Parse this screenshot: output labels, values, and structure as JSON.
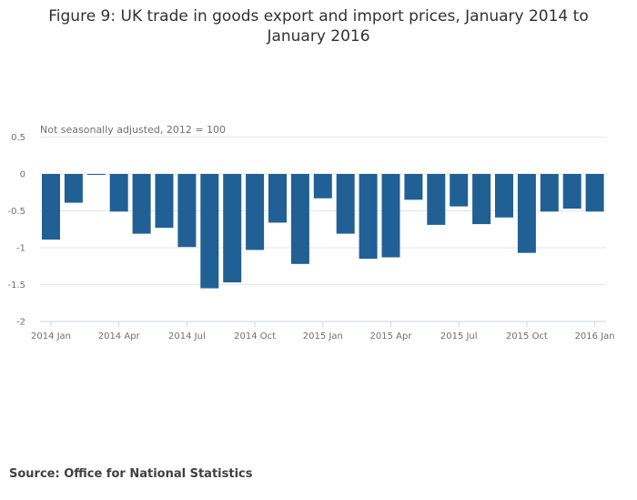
{
  "chart_data": {
    "type": "bar",
    "title": "Figure 9: UK trade in goods export and import prices, January 2014 to January 2016",
    "subtitle": "Not seasonally adjusted, 2012 = 100",
    "xlabel": "",
    "ylabel": "",
    "ylim": [
      -2,
      0.5
    ],
    "yticks": [
      "0.5",
      "0",
      "-0.5",
      "-1",
      "-1.5",
      "-2"
    ],
    "grid": true,
    "bar_color": "#206095",
    "categories": [
      "2014 Jan",
      "2014 Feb",
      "2014 Mar",
      "2014 Apr",
      "2014 May",
      "2014 Jun",
      "2014 Jul",
      "2014 Aug",
      "2014 Sep",
      "2014 Oct",
      "2014 Nov",
      "2014 Dec",
      "2015 Jan",
      "2015 Feb",
      "2015 Mar",
      "2015 Apr",
      "2015 May",
      "2015 Jun",
      "2015 Jul",
      "2015 Aug",
      "2015 Sep",
      "2015 Oct",
      "2015 Nov",
      "2015 Dec",
      "2016 Jan"
    ],
    "values": [
      -0.89,
      -0.39,
      -0.01,
      -0.51,
      -0.81,
      -0.73,
      -0.99,
      -1.55,
      -1.47,
      -1.03,
      -0.66,
      -1.22,
      -0.33,
      -0.81,
      -1.15,
      -1.13,
      -0.35,
      -0.69,
      -0.44,
      -0.68,
      -0.59,
      -1.07,
      -0.51,
      -0.47,
      -0.51
    ],
    "xtick_labels": [
      "2014 Jan",
      "2014 Apr",
      "2014 Jul",
      "2014 Oct",
      "2015 Jan",
      "2015 Apr",
      "2015 Jul",
      "2015 Oct",
      "2016 Jan"
    ]
  },
  "source": "Source: Office for National Statistics"
}
